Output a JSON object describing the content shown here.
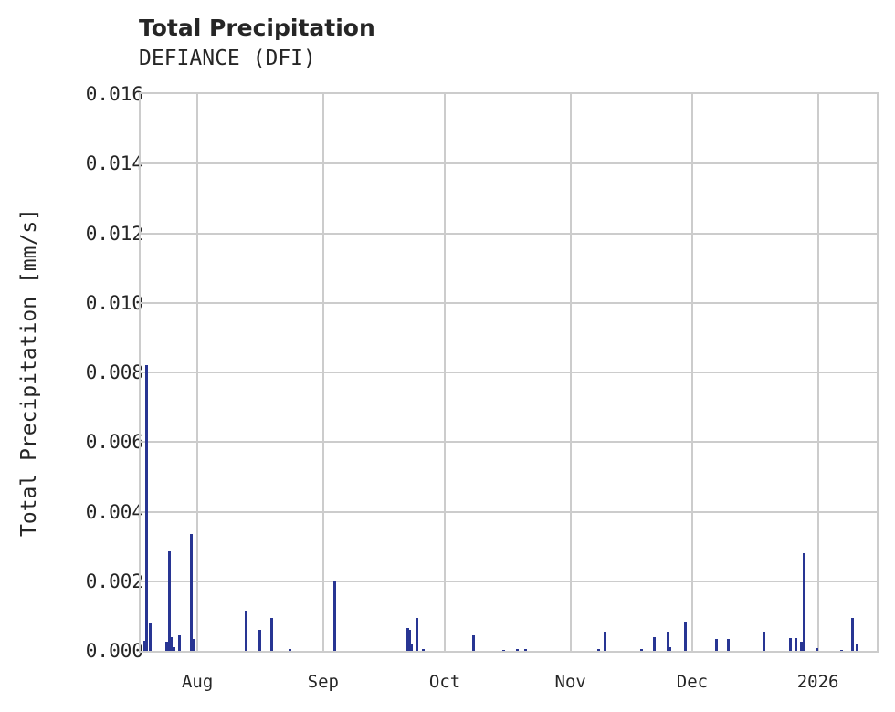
{
  "header": {
    "title": "Total Precipitation",
    "subtitle": "DEFIANCE (DFI)"
  },
  "colors": {
    "bar": "#283593",
    "grid": "#cccccc",
    "text": "#262626"
  },
  "axes": {
    "ylabel": "Total Precipitation [mm/s]",
    "yticks": [
      "0.000",
      "0.002",
      "0.004",
      "0.006",
      "0.008",
      "0.010",
      "0.012",
      "0.014",
      "0.016"
    ],
    "xticks": [
      "Aug",
      "Sep",
      "Oct",
      "Nov",
      "Dec",
      "2026"
    ]
  },
  "chart_data": {
    "type": "bar",
    "title": "Total Precipitation",
    "subtitle": "DEFIANCE (DFI)",
    "xlabel": "",
    "ylabel": "Total Precipitation [mm/s]",
    "ylim": [
      0,
      0.016
    ],
    "xlim": [
      "2025-07-18",
      "2026-01-15"
    ],
    "grid": true,
    "legend": null,
    "x_tick_labels": [
      "Aug",
      "Sep",
      "Oct",
      "Nov",
      "Dec",
      "2026"
    ],
    "y_tick_labels": [
      "0.000",
      "0.002",
      "0.004",
      "0.006",
      "0.008",
      "0.010",
      "0.012",
      "0.014",
      "0.016"
    ],
    "series": [
      {
        "name": "Total Precipitation",
        "points": [
          {
            "day": 1.0,
            "date": "2025-07-19",
            "value": 0.0003
          },
          {
            "day": 1.4,
            "date": "2025-07-19",
            "value": 0.0082
          },
          {
            "day": 2.3,
            "date": "2025-07-20",
            "value": 0.0008
          },
          {
            "day": 6.5,
            "date": "2025-07-24",
            "value": 0.00025
          },
          {
            "day": 7.0,
            "date": "2025-07-25",
            "value": 0.00285
          },
          {
            "day": 7.5,
            "date": "2025-07-25",
            "value": 0.0004
          },
          {
            "day": 8.2,
            "date": "2025-07-26",
            "value": 0.0001
          },
          {
            "day": 9.6,
            "date": "2025-07-27",
            "value": 0.00045
          },
          {
            "day": 12.6,
            "date": "2025-07-30",
            "value": 0.00335
          },
          {
            "day": 13.1,
            "date": "2025-07-31",
            "value": 0.00035
          },
          {
            "day": 25.9,
            "date": "2025-08-12",
            "value": 0.00115
          },
          {
            "day": 29.4,
            "date": "2025-08-16",
            "value": 0.0006
          },
          {
            "day": 32.4,
            "date": "2025-08-19",
            "value": 0.00095
          },
          {
            "day": 36.9,
            "date": "2025-08-24",
            "value": 5e-05
          },
          {
            "day": 47.9,
            "date": "2025-09-04",
            "value": 0.002
          },
          {
            "day": 65.8,
            "date": "2025-09-21",
            "value": 0.00065
          },
          {
            "day": 66.3,
            "date": "2025-09-22",
            "value": 0.0006
          },
          {
            "day": 66.7,
            "date": "2025-09-22",
            "value": 0.0002
          },
          {
            "day": 68.2,
            "date": "2025-09-24",
            "value": 0.00095
          },
          {
            "day": 69.7,
            "date": "2025-09-25",
            "value": 5e-05
          },
          {
            "day": 82.0,
            "date": "2025-10-08",
            "value": 0.00045
          },
          {
            "day": 89.5,
            "date": "2025-10-15",
            "value": 3e-05
          },
          {
            "day": 93.0,
            "date": "2025-10-19",
            "value": 5e-05
          },
          {
            "day": 95.0,
            "date": "2025-10-21",
            "value": 5e-05
          },
          {
            "day": 112.9,
            "date": "2025-11-07",
            "value": 5e-05
          },
          {
            "day": 114.6,
            "date": "2025-11-09",
            "value": 0.00055
          },
          {
            "day": 123.6,
            "date": "2025-11-18",
            "value": 5e-05
          },
          {
            "day": 126.7,
            "date": "2025-11-21",
            "value": 0.0004
          },
          {
            "day": 130.0,
            "date": "2025-11-24",
            "value": 0.00055
          },
          {
            "day": 130.6,
            "date": "2025-11-25",
            "value": 0.0001
          },
          {
            "day": 134.4,
            "date": "2025-11-29",
            "value": 0.00085
          },
          {
            "day": 142.0,
            "date": "2025-12-06",
            "value": 0.00035
          },
          {
            "day": 145.0,
            "date": "2025-12-09",
            "value": 0.00035
          },
          {
            "day": 153.7,
            "date": "2025-12-18",
            "value": 0.00055
          },
          {
            "day": 160.3,
            "date": "2025-12-24",
            "value": 0.00038
          },
          {
            "day": 161.5,
            "date": "2025-12-26",
            "value": 0.00038
          },
          {
            "day": 163.0,
            "date": "2025-12-27",
            "value": 0.00025
          },
          {
            "day": 163.5,
            "date": "2025-12-28",
            "value": 0.0028
          },
          {
            "day": 166.7,
            "date": "2025-12-31",
            "value": 8e-05
          },
          {
            "day": 172.9,
            "date": "2026-01-06",
            "value": 3e-05
          },
          {
            "day": 175.6,
            "date": "2026-01-09",
            "value": 0.00095
          },
          {
            "day": 176.7,
            "date": "2026-01-10",
            "value": 0.00018
          }
        ]
      }
    ]
  }
}
